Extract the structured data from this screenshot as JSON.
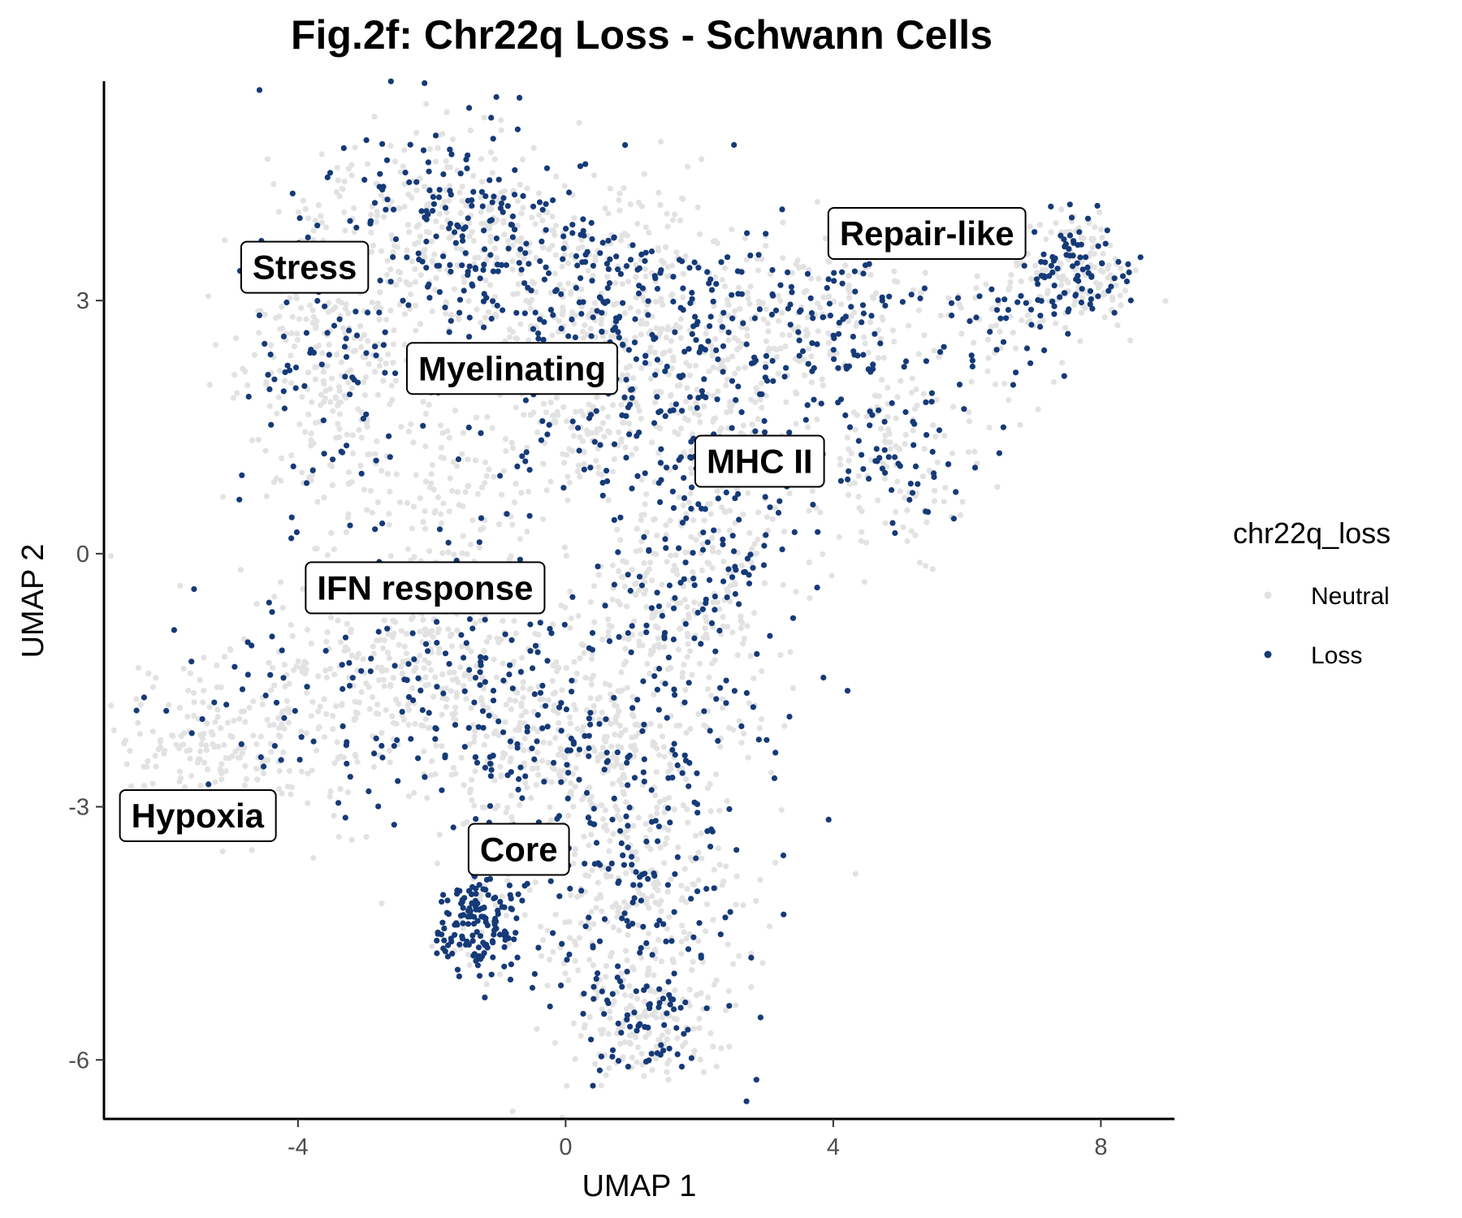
{
  "chart_data": {
    "type": "scatter",
    "title": "Fig.2f: Chr22q Loss - Schwann Cells",
    "xlabel": "UMAP 1",
    "ylabel": "UMAP 2",
    "xlim": [
      -6.9,
      9.1
    ],
    "ylim": [
      -6.7,
      5.6
    ],
    "x_ticks": [
      {
        "value": -4,
        "label": "-4"
      },
      {
        "value": 0,
        "label": "0"
      },
      {
        "value": 4,
        "label": "4"
      },
      {
        "value": 8,
        "label": "8"
      }
    ],
    "y_ticks": [
      {
        "value": 3,
        "label": "3"
      },
      {
        "value": 0,
        "label": "0"
      },
      {
        "value": -3,
        "label": "-3"
      },
      {
        "value": -6,
        "label": "-6"
      }
    ],
    "grid": false,
    "legend": {
      "title": "chr22q_loss",
      "placement": "right",
      "entries": [
        {
          "label": "Neutral",
          "color": "#e2e2e2"
        },
        {
          "label": "Loss",
          "color": "#153a78"
        }
      ]
    },
    "series": [
      {
        "name": "Neutral",
        "color": "#e2e2e2"
      },
      {
        "name": "Loss",
        "color": "#153a78"
      }
    ],
    "regions": [
      {
        "label": "Stress",
        "cx": -3.5,
        "cy": 2.4,
        "sx": 0.7,
        "sy": 1.1,
        "n": 420,
        "loss_frac": 0.22
      },
      {
        "label": "Myelinating",
        "cx": -1.6,
        "cy": 3.9,
        "sx": 0.9,
        "sy": 0.6,
        "n": 380,
        "loss_frac": 0.38
      },
      {
        "label": "Myelinating",
        "cx": 0.3,
        "cy": 3.1,
        "sx": 1.1,
        "sy": 0.6,
        "n": 320,
        "loss_frac": 0.38
      },
      {
        "label": "Myelinating",
        "cx": 0.2,
        "cy": 1.6,
        "sx": 0.5,
        "sy": 0.5,
        "n": 160,
        "loss_frac": 0.18
      },
      {
        "label": "MHC II",
        "cx": 1.8,
        "cy": 2.3,
        "sx": 0.9,
        "sy": 0.8,
        "n": 330,
        "loss_frac": 0.42
      },
      {
        "label": "MHC II",
        "cx": 2.3,
        "cy": 0.1,
        "sx": 0.6,
        "sy": 1.0,
        "n": 260,
        "loss_frac": 0.45
      },
      {
        "label": "Repair-like",
        "cx": 3.6,
        "cy": 2.8,
        "sx": 0.9,
        "sy": 0.5,
        "n": 260,
        "loss_frac": 0.42
      },
      {
        "label": "Repair-like",
        "cx": 5.0,
        "cy": 1.2,
        "sx": 0.6,
        "sy": 0.6,
        "n": 180,
        "loss_frac": 0.38
      },
      {
        "label": "Repair-like",
        "cx": 7.6,
        "cy": 3.4,
        "sx": 0.45,
        "sy": 0.3,
        "n": 220,
        "loss_frac": 0.42
      },
      {
        "label": "Repair-like",
        "cx": 6.4,
        "cy": 2.7,
        "sx": 0.5,
        "sy": 0.5,
        "n": 90,
        "loss_frac": 0.4
      },
      {
        "label": "IFN response",
        "cx": -2.4,
        "cy": -1.5,
        "sx": 1.3,
        "sy": 0.7,
        "n": 470,
        "loss_frac": 0.22
      },
      {
        "label": "IFN response",
        "cx": -1.6,
        "cy": 0.4,
        "sx": 0.5,
        "sy": 0.8,
        "n": 150,
        "loss_frac": 0.12
      },
      {
        "label": "Hypoxia",
        "cx": -5.2,
        "cy": -2.3,
        "sx": 0.8,
        "sy": 0.4,
        "n": 190,
        "loss_frac": 0.1
      },
      {
        "label": "Core",
        "cx": 0.2,
        "cy": -2.2,
        "sx": 1.3,
        "sy": 0.7,
        "n": 500,
        "loss_frac": 0.3
      },
      {
        "label": "Core",
        "cx": 1.0,
        "cy": -4.2,
        "sx": 0.8,
        "sy": 0.9,
        "n": 420,
        "loss_frac": 0.3
      },
      {
        "label": "Core",
        "cx": 1.2,
        "cy": -5.6,
        "sx": 0.5,
        "sy": 0.3,
        "n": 160,
        "loss_frac": 0.35
      },
      {
        "label": "Core",
        "cx": -1.3,
        "cy": -4.4,
        "sx": 0.3,
        "sy": 0.3,
        "n": 170,
        "loss_frac": 0.88
      },
      {
        "label": "Core",
        "cx": 1.4,
        "cy": -0.6,
        "sx": 0.7,
        "sy": 0.6,
        "n": 170,
        "loss_frac": 0.18
      }
    ],
    "annotations": [
      {
        "text": "Stress",
        "x": -3.9,
        "y": 3.4
      },
      {
        "text": "Myelinating",
        "x": -0.8,
        "y": 2.2
      },
      {
        "text": "MHC II",
        "x": 2.9,
        "y": 1.1
      },
      {
        "text": "Repair-like",
        "x": 5.4,
        "y": 3.8
      },
      {
        "text": "IFN response",
        "x": -2.1,
        "y": -0.4
      },
      {
        "text": "Hypoxia",
        "x": -5.5,
        "y": -3.1
      },
      {
        "text": "Core",
        "x": -0.7,
        "y": -3.5
      }
    ]
  }
}
